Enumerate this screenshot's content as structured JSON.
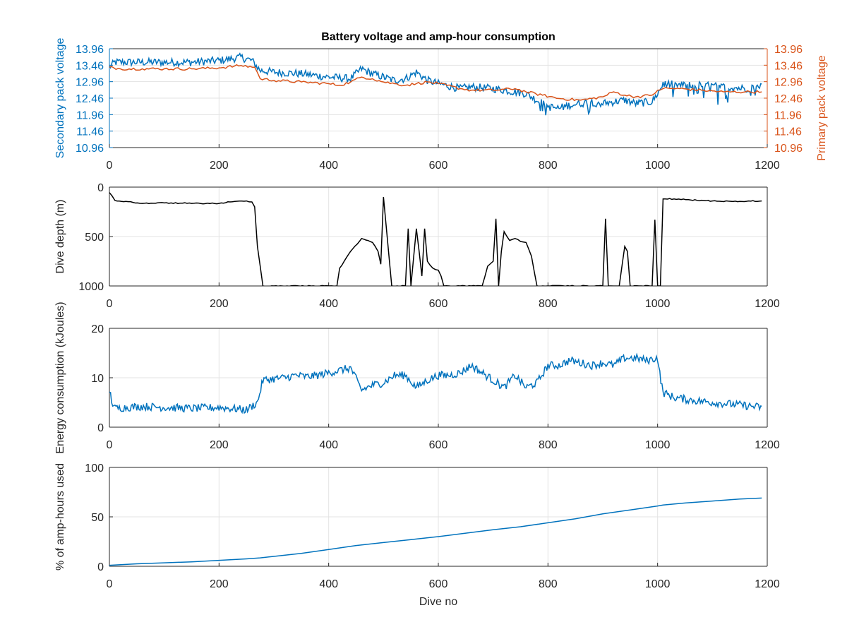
{
  "chart_data": [
    {
      "type": "line",
      "title": "Battery voltage and amp-hour consumption",
      "xlabel": "",
      "ylabel": "Secondary pack voltage",
      "ylabel_right": "Primary pack voltage",
      "xlim": [
        0,
        1200
      ],
      "ylim": [
        10.96,
        13.96
      ],
      "ylim_right": [
        10.96,
        13.96
      ],
      "x_ticks": [
        "0",
        "200",
        "400",
        "600",
        "800",
        "1000",
        "1200"
      ],
      "y_ticks": [
        "10.96",
        "11.46",
        "11.96",
        "12.46",
        "12.96",
        "13.46",
        "13.96"
      ],
      "y_ticks_right": [
        "10.96",
        "11.46",
        "11.96",
        "12.46",
        "12.96",
        "13.46",
        "13.96"
      ],
      "grid": true,
      "colors": {
        "secondary": "#0072bd",
        "primary": "#d95319",
        "left_axis": "#0072bd",
        "right_axis": "#d95319"
      },
      "series": [
        {
          "axis": "left",
          "x": [
            0,
            10,
            30,
            60,
            100,
            150,
            200,
            240,
            260,
            275,
            300,
            350,
            400,
            440,
            460,
            480,
            500,
            520,
            540,
            560,
            580,
            600,
            640,
            660,
            700,
            740,
            760,
            780,
            800,
            820,
            840,
            860,
            880,
            900,
            920,
            940,
            960,
            990,
            1000,
            1010,
            1040,
            1080,
            1120,
            1160,
            1190
          ],
          "y": [
            13.4,
            13.55,
            13.55,
            13.55,
            13.55,
            13.55,
            13.6,
            13.7,
            13.6,
            13.3,
            13.25,
            13.2,
            13.1,
            13.05,
            13.35,
            13.2,
            13.1,
            13.0,
            13.05,
            13.25,
            13.0,
            12.9,
            12.75,
            12.8,
            12.75,
            12.65,
            12.6,
            12.4,
            12.2,
            12.15,
            12.25,
            12.3,
            12.35,
            12.3,
            12.35,
            12.4,
            12.3,
            12.35,
            12.6,
            12.9,
            12.85,
            12.85,
            12.8,
            12.75,
            12.85
          ],
          "spread": 0.12
        },
        {
          "axis": "right",
          "x": [
            0,
            20,
            60,
            100,
            150,
            200,
            240,
            265,
            275,
            300,
            350,
            400,
            420,
            440,
            460,
            480,
            500,
            520,
            540,
            560,
            580,
            600,
            640,
            660,
            700,
            740,
            760,
            790,
            820,
            860,
            880,
            900,
            920,
            940,
            960,
            990,
            1000,
            1010,
            1040,
            1080,
            1120,
            1160,
            1190
          ],
          "y": [
            13.4,
            13.35,
            13.35,
            13.35,
            13.35,
            13.38,
            13.45,
            13.4,
            13.05,
            13.0,
            12.95,
            12.9,
            12.85,
            12.95,
            13.1,
            13.05,
            12.95,
            12.9,
            12.85,
            12.9,
            12.95,
            12.9,
            12.75,
            12.7,
            12.7,
            12.75,
            12.65,
            12.55,
            12.45,
            12.4,
            12.45,
            12.5,
            12.65,
            12.55,
            12.5,
            12.55,
            12.7,
            12.75,
            12.75,
            12.7,
            12.65,
            12.65,
            12.65
          ]
        }
      ]
    },
    {
      "type": "line",
      "title": "",
      "xlabel": "",
      "ylabel": "Dive depth (m)",
      "xlim": [
        0,
        1200
      ],
      "ylim": [
        0,
        1000
      ],
      "y_reversed": true,
      "x_ticks": [
        "0",
        "200",
        "400",
        "600",
        "800",
        "1000",
        "1200"
      ],
      "y_ticks": [
        "0",
        "500",
        "1000"
      ],
      "grid": true,
      "colors": {
        "line": "#000000"
      },
      "series": [
        {
          "x": [
            0,
            10,
            30,
            60,
            100,
            150,
            200,
            220,
            250,
            260,
            265,
            270,
            280,
            300,
            400,
            415,
            420,
            440,
            460,
            480,
            490,
            495,
            500,
            505,
            510,
            515,
            525,
            540,
            545,
            550,
            560,
            565,
            570,
            575,
            580,
            590,
            600,
            605,
            610,
            620,
            640,
            660,
            680,
            690,
            700,
            705,
            710,
            715,
            720,
            730,
            740,
            750,
            760,
            770,
            780,
            790,
            800,
            900,
            905,
            910,
            915,
            930,
            940,
            945,
            950,
            990,
            995,
            1000,
            1005,
            1010,
            1030,
            1060,
            1100,
            1150,
            1190
          ],
          "y": [
            55,
            135,
            145,
            165,
            160,
            165,
            165,
            150,
            140,
            150,
            200,
            600,
            1000,
            1000,
            1000,
            1000,
            820,
            650,
            520,
            560,
            650,
            780,
            100,
            400,
            700,
            1000,
            1000,
            1000,
            420,
            1000,
            420,
            650,
            900,
            420,
            750,
            820,
            840,
            900,
            1000,
            1000,
            1000,
            1000,
            1000,
            800,
            750,
            320,
            1000,
            650,
            450,
            540,
            520,
            550,
            560,
            700,
            1000,
            1000,
            1000,
            1000,
            320,
            1000,
            1000,
            1000,
            600,
            650,
            1000,
            1000,
            330,
            1000,
            1000,
            120,
            120,
            130,
            140,
            145,
            140
          ]
        }
      ]
    },
    {
      "type": "line",
      "title": "",
      "xlabel": "",
      "ylabel": "Energy consumption (kJoules)",
      "xlim": [
        0,
        1200
      ],
      "ylim": [
        0,
        20
      ],
      "x_ticks": [
        "0",
        "200",
        "400",
        "600",
        "800",
        "1000",
        "1200"
      ],
      "y_ticks": [
        "0",
        "10",
        "20"
      ],
      "grid": true,
      "colors": {
        "line": "#0072bd"
      },
      "series": [
        {
          "x": [
            0,
            5,
            10,
            30,
            60,
            100,
            150,
            200,
            250,
            270,
            280,
            300,
            320,
            340,
            360,
            380,
            400,
            420,
            440,
            460,
            480,
            500,
            520,
            540,
            560,
            580,
            600,
            620,
            640,
            660,
            680,
            700,
            720,
            740,
            760,
            780,
            800,
            820,
            840,
            860,
            880,
            900,
            920,
            940,
            960,
            980,
            1000,
            1005,
            1010,
            1030,
            1060,
            1100,
            1150,
            1190
          ],
          "y": [
            7.5,
            5.0,
            3.8,
            4.0,
            4.2,
            4.0,
            3.8,
            4.0,
            3.5,
            5.0,
            9.5,
            9.8,
            10.0,
            10.5,
            10.2,
            10.5,
            11.0,
            11.5,
            12.0,
            7.5,
            8.5,
            9.0,
            10.5,
            10.5,
            8.0,
            9.5,
            10.5,
            10.5,
            11.0,
            12.5,
            11.0,
            9.5,
            8.0,
            10.5,
            8.0,
            9.0,
            12.5,
            12.5,
            13.5,
            13.0,
            12.5,
            13.0,
            12.5,
            14.0,
            14.0,
            13.5,
            14.0,
            10.0,
            7.0,
            6.0,
            5.5,
            5.0,
            4.5,
            4.0
          ],
          "spread": 0.8
        }
      ]
    },
    {
      "type": "line",
      "title": "",
      "xlabel": "Dive no",
      "ylabel": "% of amp-hours used",
      "xlim": [
        0,
        1200
      ],
      "ylim": [
        0,
        100
      ],
      "x_ticks": [
        "0",
        "200",
        "400",
        "600",
        "800",
        "1000",
        "1200"
      ],
      "y_ticks": [
        "0",
        "50",
        "100"
      ],
      "grid": true,
      "colors": {
        "line": "#0072bd"
      },
      "series": [
        {
          "x": [
            0,
            50,
            100,
            150,
            200,
            250,
            275,
            300,
            350,
            400,
            450,
            500,
            550,
            600,
            650,
            700,
            750,
            800,
            850,
            900,
            950,
            1000,
            1010,
            1050,
            1100,
            1150,
            1190
          ],
          "y": [
            1,
            2.5,
            3.5,
            4.5,
            6,
            7.5,
            8.5,
            10,
            13,
            17,
            21,
            24,
            27,
            30,
            33.5,
            37,
            40,
            44,
            48,
            53,
            57,
            61,
            62,
            64,
            66,
            68,
            69
          ]
        }
      ]
    }
  ]
}
